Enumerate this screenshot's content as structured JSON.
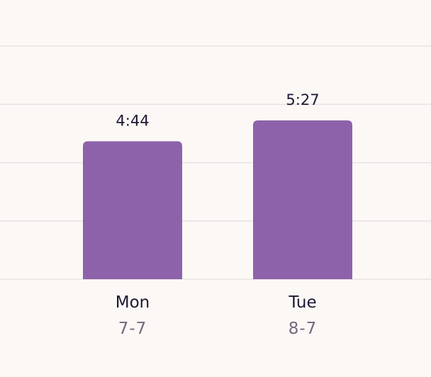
{
  "chart_data": {
    "type": "bar",
    "categories": [
      "Mon",
      "Tue"
    ],
    "category_sublabels": [
      "7-7",
      "8-7"
    ],
    "values": [
      4.733,
      5.45
    ],
    "value_labels": [
      "4:44",
      "5:27"
    ],
    "ylim": [
      0,
      8
    ],
    "gridlines": [
      0,
      2,
      4,
      6,
      8
    ],
    "grid": true,
    "bar_color": "#8d62aa",
    "gridline_color": "#e7e2e4",
    "background": "#fcf8f5"
  }
}
